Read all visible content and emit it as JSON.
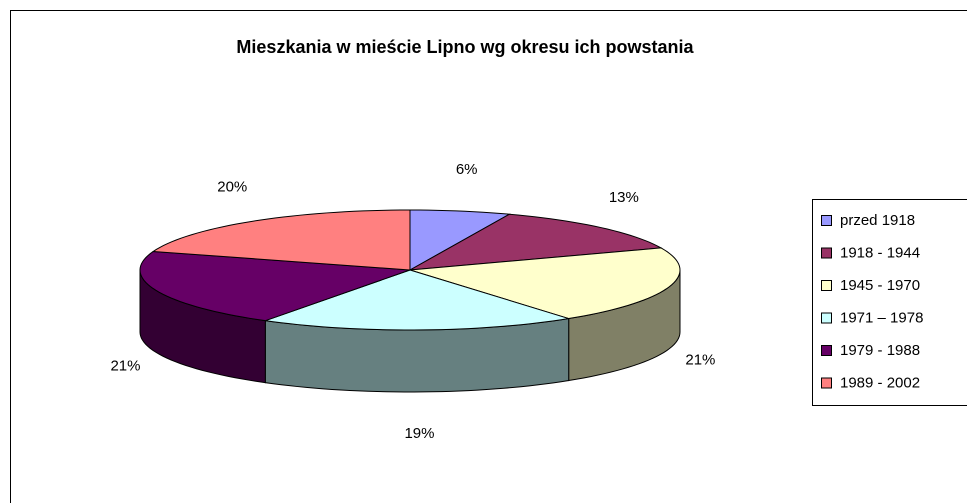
{
  "chart_data": {
    "type": "pie3d",
    "title": "Mieszkania w mieście Lipno wg okresu ich powstania",
    "categories": [
      "przed 1918",
      "1918 - 1944",
      "1945 - 1970",
      "1971 – 1978",
      "1979 - 1988",
      "1989 - 2002"
    ],
    "values": [
      6,
      13,
      21,
      19,
      21,
      20
    ],
    "value_labels": [
      "6%",
      "13%",
      "21%",
      "19%",
      "21%",
      "20%"
    ],
    "colors": [
      "#9999ff",
      "#993366",
      "#ffffcc",
      "#ccffff",
      "#660066",
      "#ff8080"
    ],
    "legend": "right"
  }
}
